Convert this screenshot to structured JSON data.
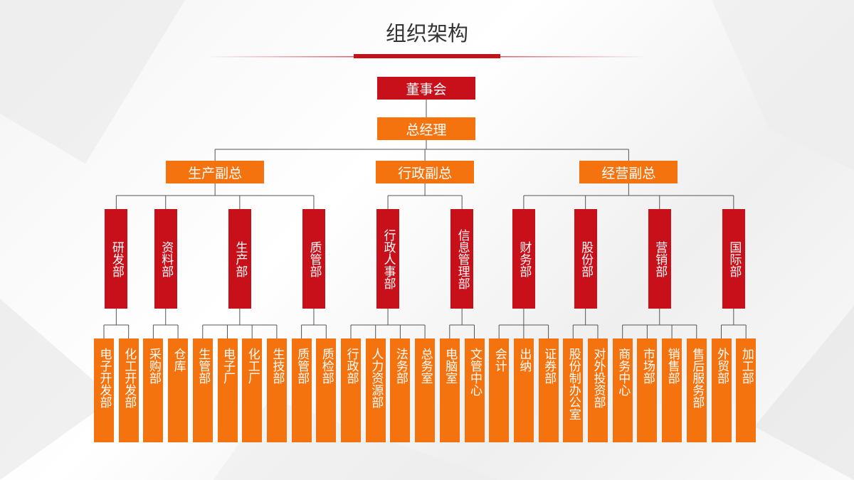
{
  "title": "组织架构",
  "root": {
    "label": "董事会"
  },
  "manager": {
    "label": "总经理"
  },
  "divisions": [
    {
      "label": "生产副总",
      "departments": [
        {
          "label": "研发部",
          "units": [
            "电子开发部",
            "化工开发部"
          ]
        },
        {
          "label": "资料部",
          "units": [
            "采购部",
            "仓库"
          ]
        },
        {
          "label": "生产部",
          "units": [
            "生管部",
            "电子厂",
            "化工厂",
            "生技部"
          ]
        },
        {
          "label": "质管部",
          "units": [
            "质管部",
            "质检部"
          ]
        }
      ]
    },
    {
      "label": "行政副总",
      "departments": [
        {
          "label": "行政人事部",
          "units": [
            "行政部",
            "人力资源部",
            "法务部",
            "总务室"
          ]
        },
        {
          "label": "信息管理部",
          "units": [
            "电脑室",
            "文管中心"
          ]
        }
      ]
    },
    {
      "label": "经营副总",
      "departments": [
        {
          "label": "财务部",
          "units": [
            "会计",
            "出纳",
            "证券部"
          ]
        },
        {
          "label": "股份部",
          "units": [
            "股份制办公室",
            "对外投资部"
          ]
        },
        {
          "label": "营销部",
          "units": [
            "商务中心",
            "市场部",
            "销售部",
            "售后服务部"
          ]
        },
        {
          "label": "国际部",
          "units": [
            "外贸部",
            "加工部"
          ]
        }
      ]
    }
  ]
}
